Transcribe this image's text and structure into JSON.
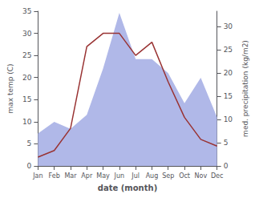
{
  "chart_data": {
    "type": "line",
    "xlabel": "date (month)",
    "ylabel": "max temp (C)",
    "y2label": "med. precipitation (kg/m2)",
    "categories": [
      "Jan",
      "Feb",
      "Mar",
      "Apr",
      "May",
      "Jun",
      "Jul",
      "Aug",
      "Sep",
      "Oct",
      "Nov",
      "Dec"
    ],
    "series": [
      {
        "type": "area",
        "color": "#b0b8e8",
        "axis": "y2",
        "values": [
          7,
          9.5,
          8,
          11,
          21,
          33,
          23,
          23,
          20,
          13.5,
          19,
          10.5
        ]
      },
      {
        "type": "line",
        "color": "#993333",
        "values": [
          2.0,
          3.5,
          8.5,
          27.0,
          30.0,
          30.0,
          25.0,
          28.0,
          19.0,
          11.0,
          6.0,
          4.5
        ]
      }
    ],
    "ylim": [
      0,
      35
    ],
    "yticks": [
      0,
      5,
      10,
      15,
      20,
      25,
      30,
      35
    ],
    "y2lim": [
      0,
      33.33
    ],
    "y2ticks": [
      0,
      5,
      10,
      15,
      20,
      25,
      30
    ],
    "grid": false
  }
}
